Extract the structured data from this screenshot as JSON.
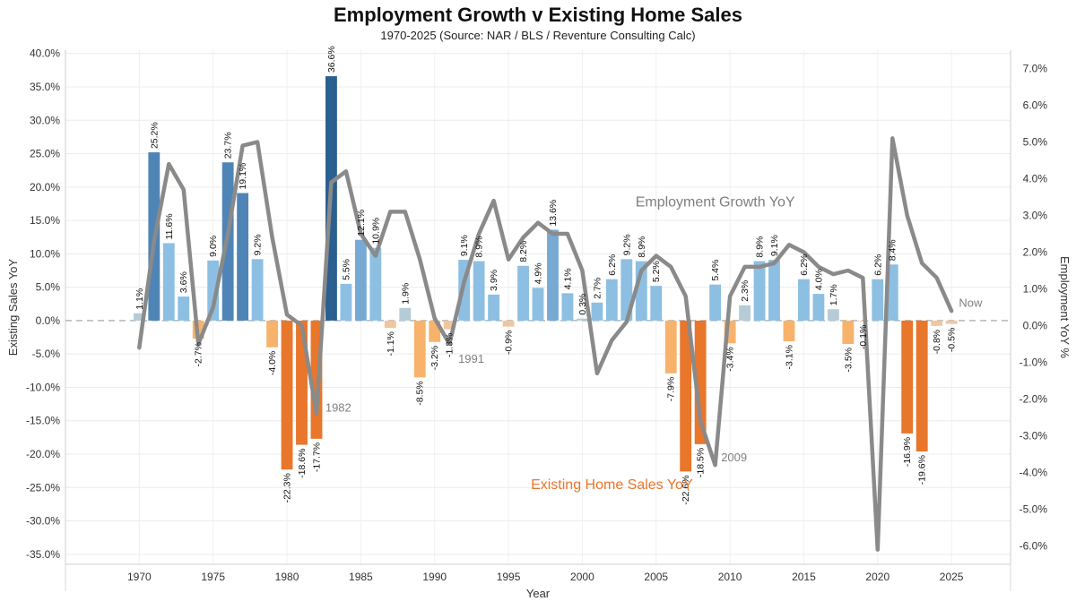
{
  "chart_data": {
    "type": "bar",
    "title": "Employment Growth v Existing Home Sales",
    "subtitle": "1970-2025 (Source: NAR / BLS / Reventure Consulting Calc)",
    "xlabel": "Year",
    "ylabel": "Existing Sales YoY",
    "y2label": "Employment YoY %",
    "xlim": [
      1965,
      2029
    ],
    "ylim": [
      -36.5,
      40.5
    ],
    "y2lim": [
      -6.5,
      7.5
    ],
    "x_ticks": [
      1970,
      1975,
      1980,
      1985,
      1990,
      1995,
      2000,
      2005,
      2010,
      2015,
      2020,
      2025
    ],
    "y_ticks": [
      {
        "v": 40,
        "label": "40.0%"
      },
      {
        "v": 35,
        "label": "35.0%"
      },
      {
        "v": 30,
        "label": "30.0%"
      },
      {
        "v": 25,
        "label": "25.0%"
      },
      {
        "v": 20,
        "label": "20.0%"
      },
      {
        "v": 15,
        "label": "15.0%"
      },
      {
        "v": 10,
        "label": "10.0%"
      },
      {
        "v": 5,
        "label": "5.0%"
      },
      {
        "v": 0,
        "label": "0.0%"
      },
      {
        "v": -5,
        "label": "-5.0%"
      },
      {
        "v": -10,
        "label": "-10.0%"
      },
      {
        "v": -15,
        "label": "-15.0%"
      },
      {
        "v": -20,
        "label": "-20.0%"
      },
      {
        "v": -25,
        "label": "-25.0%"
      },
      {
        "v": -30,
        "label": "-30.0%"
      },
      {
        "v": -35,
        "label": "-35.0%"
      }
    ],
    "y2_ticks": [
      {
        "v": 7,
        "label": "7.0%"
      },
      {
        "v": 6,
        "label": "6.0%"
      },
      {
        "v": 5,
        "label": "5.0%"
      },
      {
        "v": 4,
        "label": "4.0%"
      },
      {
        "v": 3,
        "label": "3.0%"
      },
      {
        "v": 2,
        "label": "2.0%"
      },
      {
        "v": 1,
        "label": "1.0%"
      },
      {
        "v": 0,
        "label": "0.0%"
      },
      {
        "v": -1,
        "label": "-1.0%"
      },
      {
        "v": -2,
        "label": "-2.0%"
      },
      {
        "v": -3,
        "label": "-3.0%"
      },
      {
        "v": -4,
        "label": "-4.0%"
      },
      {
        "v": -5,
        "label": "-5.0%"
      },
      {
        "v": -6,
        "label": "-6.0%"
      }
    ],
    "series": [
      {
        "name": "Existing Home Sales YoY",
        "type": "bar",
        "data": [
          {
            "year": 1970,
            "value": 1.1,
            "label": "1.1%"
          },
          {
            "year": 1971,
            "value": 25.2,
            "label": "25.2%"
          },
          {
            "year": 1972,
            "value": 11.6,
            "label": "11.6%"
          },
          {
            "year": 1973,
            "value": 3.6,
            "label": "3.6%"
          },
          {
            "year": 1974,
            "value": -2.7,
            "label": "-2.7%"
          },
          {
            "year": 1975,
            "value": 9.0,
            "label": "9.0%"
          },
          {
            "year": 1976,
            "value": 23.7,
            "label": "23.7%"
          },
          {
            "year": 1977,
            "value": 19.1,
            "label": "19.1%"
          },
          {
            "year": 1978,
            "value": 9.2,
            "label": "9.2%"
          },
          {
            "year": 1979,
            "value": -4.0,
            "label": "-4.0%"
          },
          {
            "year": 1980,
            "value": -22.3,
            "label": "-22.3%"
          },
          {
            "year": 1981,
            "value": -18.6,
            "label": "-18.6%"
          },
          {
            "year": 1982,
            "value": -17.7,
            "label": "-17.7%"
          },
          {
            "year": 1983,
            "value": 36.6,
            "label": "36.6%"
          },
          {
            "year": 1984,
            "value": 5.5,
            "label": "5.5%"
          },
          {
            "year": 1985,
            "value": 12.1,
            "label": "12.1%"
          },
          {
            "year": 1986,
            "value": 10.9,
            "label": "10.9%"
          },
          {
            "year": 1987,
            "value": -1.1,
            "label": "-1.1%"
          },
          {
            "year": 1988,
            "value": 1.9,
            "label": "1.9%"
          },
          {
            "year": 1989,
            "value": -8.5,
            "label": "-8.5%"
          },
          {
            "year": 1990,
            "value": -3.2,
            "label": "-3.2%"
          },
          {
            "year": 1991,
            "value": -1.3,
            "label": "-1.3%"
          },
          {
            "year": 1992,
            "value": 9.1,
            "label": "9.1%"
          },
          {
            "year": 1993,
            "value": 8.9,
            "label": "8.9%"
          },
          {
            "year": 1994,
            "value": 3.9,
            "label": "3.9%"
          },
          {
            "year": 1995,
            "value": -0.9,
            "label": "-0.9%"
          },
          {
            "year": 1996,
            "value": 8.2,
            "label": "8.2%"
          },
          {
            "year": 1997,
            "value": 4.9,
            "label": "4.9%"
          },
          {
            "year": 1998,
            "value": 13.6,
            "label": "13.6%"
          },
          {
            "year": 1999,
            "value": 4.1,
            "label": "4.1%"
          },
          {
            "year": 2000,
            "value": 0.3,
            "label": "0.3%"
          },
          {
            "year": 2001,
            "value": 2.7,
            "label": "2.7%"
          },
          {
            "year": 2002,
            "value": 6.2,
            "label": "6.2%"
          },
          {
            "year": 2003,
            "value": 9.2,
            "label": "9.2%"
          },
          {
            "year": 2004,
            "value": 8.9,
            "label": "8.9%"
          },
          {
            "year": 2005,
            "value": 5.2,
            "label": "5.2%"
          },
          {
            "year": 2006,
            "value": -7.9,
            "label": "-7.9%"
          },
          {
            "year": 2007,
            "value": -22.6,
            "label": "-22.6%"
          },
          {
            "year": 2008,
            "value": -18.5,
            "label": "-18.5%"
          },
          {
            "year": 2009,
            "value": 5.4,
            "label": "5.4%"
          },
          {
            "year": 2010,
            "value": -3.4,
            "label": "-3.4%"
          },
          {
            "year": 2011,
            "value": 2.3,
            "label": "2.3%"
          },
          {
            "year": 2012,
            "value": 8.9,
            "label": "8.9%"
          },
          {
            "year": 2013,
            "value": 9.1,
            "label": "9.1%"
          },
          {
            "year": 2014,
            "value": -3.1,
            "label": "-3.1%"
          },
          {
            "year": 2015,
            "value": 6.2,
            "label": "6.2%"
          },
          {
            "year": 2016,
            "value": 4.0,
            "label": "4.0%"
          },
          {
            "year": 2017,
            "value": 1.7,
            "label": "1.7%"
          },
          {
            "year": 2018,
            "value": -3.5,
            "label": "-3.5%"
          },
          {
            "year": 2019,
            "value": -0.1,
            "label": "-0.1%"
          },
          {
            "year": 2020,
            "value": 6.2,
            "label": "6.2%"
          },
          {
            "year": 2021,
            "value": 8.4,
            "label": "8.4%"
          },
          {
            "year": 2022,
            "value": -16.9,
            "label": "-16.9%"
          },
          {
            "year": 2023,
            "value": -19.6,
            "label": "-19.6%"
          },
          {
            "year": 2024,
            "value": -0.8,
            "label": "-0.8%"
          },
          {
            "year": 2025,
            "value": -0.5,
            "label": "-0.5%"
          }
        ]
      },
      {
        "name": "Employment Growth YoY",
        "type": "line",
        "axis": "right",
        "color": "#8a8a8a",
        "x": [
          1970,
          1971,
          1972,
          1973,
          1974,
          1975,
          1976,
          1977,
          1978,
          1979,
          1980,
          1981,
          1982,
          1983,
          1984,
          1985,
          1986,
          1987,
          1988,
          1989,
          1990,
          1991,
          1992,
          1993,
          1994,
          1995,
          1996,
          1997,
          1998,
          1999,
          2000,
          2001,
          2002,
          2003,
          2004,
          2005,
          2006,
          2007,
          2008,
          2009,
          2010,
          2011,
          2012,
          2013,
          2014,
          2015,
          2016,
          2017,
          2018,
          2019,
          2020,
          2021,
          2022,
          2023,
          2024,
          2025
        ],
        "values": [
          -0.6,
          2.3,
          4.4,
          3.7,
          -0.5,
          0.5,
          2.5,
          4.9,
          5.0,
          2.4,
          0.3,
          0.0,
          -2.4,
          3.9,
          4.2,
          2.5,
          1.9,
          3.1,
          3.1,
          1.8,
          0.2,
          -0.5,
          1.2,
          2.5,
          3.4,
          1.8,
          2.4,
          2.8,
          2.5,
          2.5,
          1.5,
          -1.3,
          -0.4,
          0.1,
          1.5,
          1.9,
          1.6,
          0.8,
          -2.6,
          -3.8,
          0.8,
          1.6,
          1.6,
          1.7,
          2.2,
          2.0,
          1.6,
          1.4,
          1.5,
          1.3,
          -6.1,
          5.1,
          3.0,
          1.7,
          1.3,
          0.4
        ]
      }
    ],
    "annotations": [
      {
        "text": "Employment Growth YoY",
        "x": 2009,
        "y": 17.1,
        "color": "#7f7f7f"
      },
      {
        "text": "Existing Home Sales YoY",
        "x": 2002,
        "y": -25.2,
        "color": "#e8762b"
      },
      {
        "text": "1982",
        "x": 1982.6,
        "y": -13.6,
        "color": "#808080"
      },
      {
        "text": "1991",
        "x": 1991.6,
        "y": -6.3,
        "color": "#808080"
      },
      {
        "text": "2009",
        "x": 2009.4,
        "y": -21.1,
        "color": "#808080"
      },
      {
        "text": "Now",
        "x": 2025.5,
        "y": 2.1,
        "color": "#808080"
      }
    ]
  }
}
